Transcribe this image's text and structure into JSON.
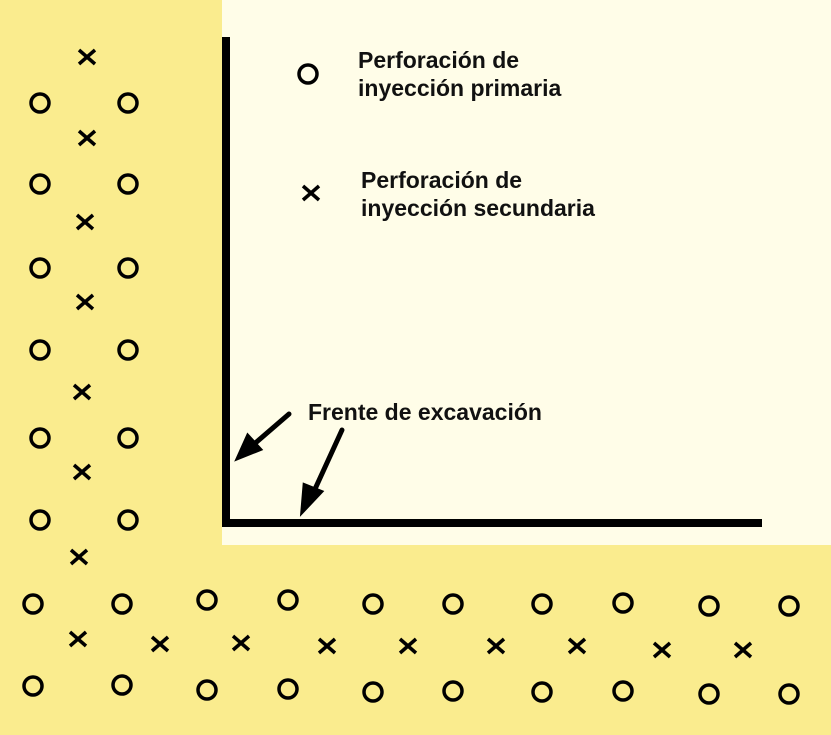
{
  "legend": {
    "primary": {
      "icon": "circle-marker",
      "line1": "Perforación de",
      "line2": "inyección primaria"
    },
    "secondary": {
      "icon": "cross-marker",
      "line1": "Perforación de",
      "line2": "inyección secundaria"
    }
  },
  "annotation": {
    "label": "Frente de excavación"
  },
  "colors": {
    "excavated": "#FFFDE8",
    "ground": "#FAEC8E",
    "ink": "#000000"
  }
}
